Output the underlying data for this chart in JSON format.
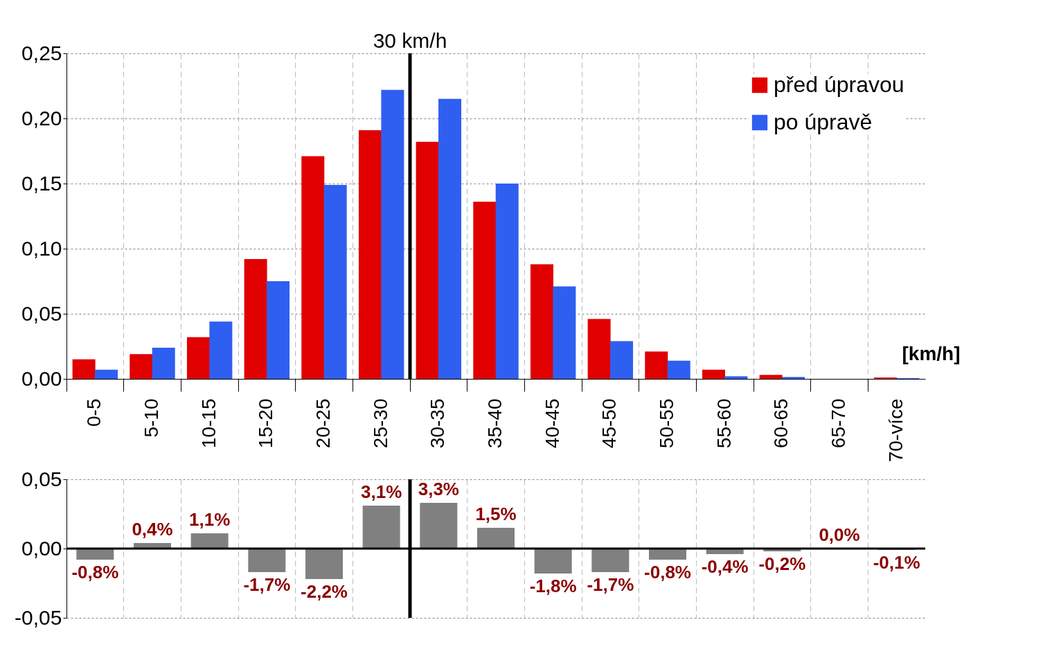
{
  "chart_data": [
    {
      "type": "bar",
      "xlabel": "[km/h]",
      "categories": [
        "0-5",
        "5-10",
        "10-15",
        "15-20",
        "20-25",
        "25-30",
        "30-35",
        "35-40",
        "40-45",
        "45-50",
        "50-55",
        "55-60",
        "60-65",
        "65-70",
        "70-více"
      ],
      "series": [
        {
          "name": "před úpravou",
          "color": "#e00000",
          "values": [
            0.015,
            0.019,
            0.032,
            0.092,
            0.171,
            0.191,
            0.182,
            0.136,
            0.088,
            0.046,
            0.021,
            0.007,
            0.003,
            0,
            0.001
          ]
        },
        {
          "name": "po úpravě",
          "color": "#2f5ff0",
          "values": [
            0.007,
            0.024,
            0.044,
            0.075,
            0.149,
            0.222,
            0.215,
            0.15,
            0.071,
            0.029,
            0.014,
            0.002,
            0.0015,
            0,
            0.0005
          ]
        }
      ],
      "ylim": [
        0,
        0.25
      ],
      "yticks": [
        {
          "value": 0,
          "label": "0,00"
        },
        {
          "value": 0.05,
          "label": "0,05"
        },
        {
          "value": 0.1,
          "label": "0,10"
        },
        {
          "value": 0.15,
          "label": "0,15"
        },
        {
          "value": 0.2,
          "label": "0,20"
        },
        {
          "value": 0.25,
          "label": "0,25"
        }
      ],
      "grid": true,
      "legend": "top right",
      "ref_lines": [
        {
          "axis": "x",
          "value": "30-35",
          "label": "30 km/h",
          "color": "#000000"
        }
      ]
    },
    {
      "type": "bar",
      "categories": [
        "0-5",
        "5-10",
        "10-15",
        "15-20",
        "20-25",
        "25-30",
        "30-35",
        "35-40",
        "40-45",
        "45-50",
        "50-55",
        "55-60",
        "60-65",
        "65-70",
        "70-více"
      ],
      "values": [
        -0.008,
        0.004,
        0.011,
        -0.017,
        -0.022,
        0.031,
        0.033,
        0.015,
        -0.018,
        -0.017,
        -0.008,
        -0.004,
        -0.002,
        0,
        -0.001
      ],
      "value_labels": [
        "-0,8%",
        "0,4%",
        "1,1%",
        "-1,7%",
        "-2,2%",
        "3,1%",
        "3,3%",
        "1,5%",
        "-1,8%",
        "-1,7%",
        "-0,8%",
        "-0,4%",
        "-0,2%",
        "0,0%",
        "-0,1%"
      ],
      "color": "#808080",
      "ylim": [
        -0.05,
        0.05
      ],
      "yticks": [
        {
          "value": -0.05,
          "label": "-0,05"
        },
        {
          "value": 0,
          "label": "0,00"
        },
        {
          "value": 0.05,
          "label": "0,05"
        }
      ],
      "grid": true,
      "tick_labels": "y",
      "ref_lines": [
        {
          "axis": "x",
          "value": "30-35",
          "color": "#000000"
        }
      ]
    }
  ]
}
